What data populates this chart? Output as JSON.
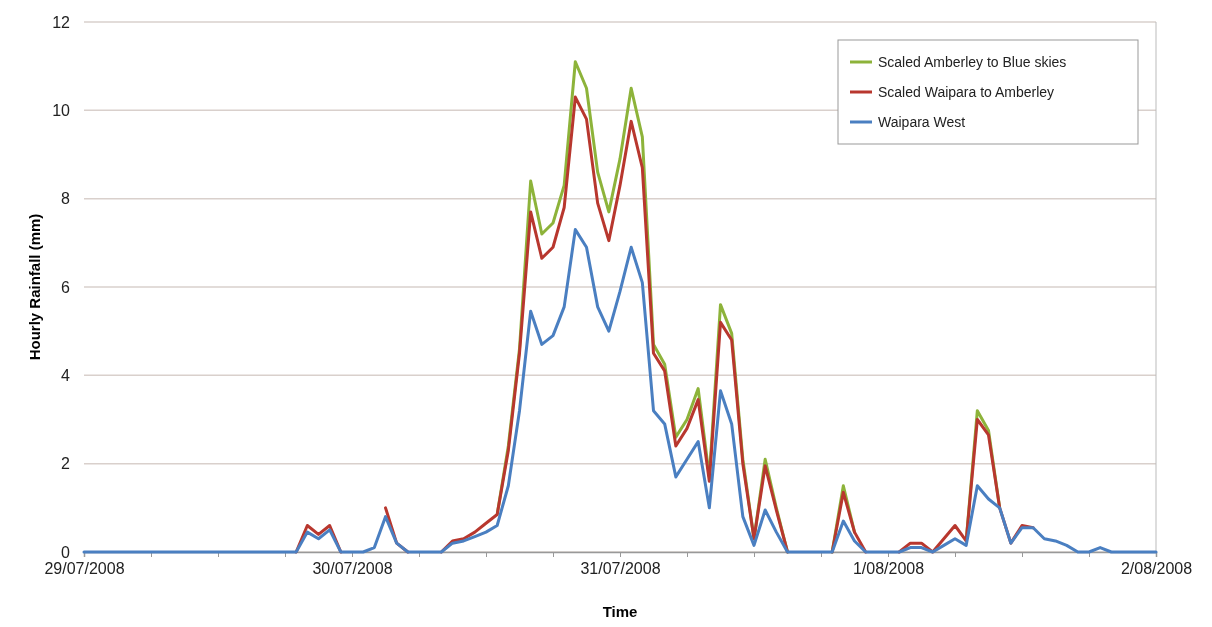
{
  "chart_data": {
    "type": "line",
    "xlabel": "Time",
    "ylabel": "Hourly Rainfall (mm)",
    "x": [
      "2008-07-29T00:00",
      "2008-07-29T01:00",
      "2008-07-29T02:00",
      "2008-07-29T03:00",
      "2008-07-29T04:00",
      "2008-07-29T05:00",
      "2008-07-29T06:00",
      "2008-07-29T07:00",
      "2008-07-29T08:00",
      "2008-07-29T09:00",
      "2008-07-29T10:00",
      "2008-07-29T11:00",
      "2008-07-29T12:00",
      "2008-07-29T13:00",
      "2008-07-29T14:00",
      "2008-07-29T15:00",
      "2008-07-29T16:00",
      "2008-07-29T17:00",
      "2008-07-29T18:00",
      "2008-07-29T19:00",
      "2008-07-29T20:00",
      "2008-07-29T21:00",
      "2008-07-29T22:00",
      "2008-07-29T23:00",
      "2008-07-30T00:00",
      "2008-07-30T01:00",
      "2008-07-30T02:00",
      "2008-07-30T03:00",
      "2008-07-30T04:00",
      "2008-07-30T05:00",
      "2008-07-30T06:00",
      "2008-07-30T07:00",
      "2008-07-30T08:00",
      "2008-07-30T09:00",
      "2008-07-30T10:00",
      "2008-07-30T11:00",
      "2008-07-30T12:00",
      "2008-07-30T13:00",
      "2008-07-30T14:00",
      "2008-07-30T15:00",
      "2008-07-30T16:00",
      "2008-07-30T17:00",
      "2008-07-30T18:00",
      "2008-07-30T19:00",
      "2008-07-30T20:00",
      "2008-07-30T21:00",
      "2008-07-30T22:00",
      "2008-07-30T23:00",
      "2008-07-31T00:00",
      "2008-07-31T01:00",
      "2008-07-31T02:00",
      "2008-07-31T03:00",
      "2008-07-31T04:00",
      "2008-07-31T05:00",
      "2008-07-31T06:00",
      "2008-07-31T07:00",
      "2008-07-31T08:00",
      "2008-07-31T09:00",
      "2008-07-31T10:00",
      "2008-07-31T11:00",
      "2008-07-31T12:00",
      "2008-07-31T13:00",
      "2008-07-31T14:00",
      "2008-07-31T15:00",
      "2008-07-31T16:00",
      "2008-07-31T17:00",
      "2008-07-31T18:00",
      "2008-07-31T19:00",
      "2008-07-31T20:00",
      "2008-07-31T21:00",
      "2008-07-31T22:00",
      "2008-07-31T23:00",
      "2008-08-01T00:00",
      "2008-08-01T01:00",
      "2008-08-01T02:00",
      "2008-08-01T03:00",
      "2008-08-01T04:00",
      "2008-08-01T05:00",
      "2008-08-01T06:00",
      "2008-08-01T07:00",
      "2008-08-01T08:00",
      "2008-08-01T09:00",
      "2008-08-01T10:00",
      "2008-08-01T11:00",
      "2008-08-01T12:00",
      "2008-08-01T13:00",
      "2008-08-01T14:00",
      "2008-08-01T15:00",
      "2008-08-01T16:00",
      "2008-08-01T17:00",
      "2008-08-01T18:00",
      "2008-08-01T19:00",
      "2008-08-01T20:00",
      "2008-08-01T21:00",
      "2008-08-01T22:00",
      "2008-08-01T23:00",
      "2008-08-02T00:00"
    ],
    "series": [
      {
        "name": "Scaled Amberley to Blue skies",
        "color": "#8db33a",
        "values": [
          null,
          null,
          null,
          null,
          null,
          null,
          null,
          null,
          null,
          null,
          null,
          null,
          null,
          null,
          null,
          null,
          null,
          null,
          null,
          null,
          null,
          null,
          null,
          null,
          null,
          null,
          null,
          null,
          null,
          null,
          null,
          null,
          null,
          null,
          null,
          null,
          null,
          0.85,
          2.4,
          4.6,
          8.4,
          7.2,
          7.45,
          8.3,
          11.1,
          10.5,
          8.6,
          7.7,
          8.9,
          10.5,
          9.4,
          4.7,
          4.25,
          2.6,
          3.0,
          3.7,
          1.7,
          5.6,
          4.95,
          2.1,
          0.3,
          2.1,
          1.0,
          0,
          null,
          null,
          null,
          0,
          1.5,
          0.45,
          null,
          null,
          null,
          null,
          null,
          null,
          null,
          null,
          null,
          0.25,
          3.2,
          2.75,
          1.0,
          null,
          null,
          null,
          null,
          null,
          null,
          null,
          null,
          null,
          null,
          null,
          null,
          null,
          null
        ]
      },
      {
        "name": "Scaled Waipara to Amberley",
        "color": "#b8372e",
        "values": [
          null,
          null,
          null,
          null,
          null,
          null,
          null,
          null,
          null,
          null,
          null,
          null,
          null,
          null,
          null,
          null,
          null,
          null,
          null,
          0,
          0.6,
          0.4,
          0.6,
          0,
          null,
          null,
          null,
          1.0,
          0.2,
          0,
          null,
          null,
          0,
          0.25,
          0.3,
          0.45,
          0.65,
          0.85,
          2.3,
          4.5,
          7.7,
          6.65,
          6.9,
          7.8,
          10.3,
          9.8,
          7.9,
          7.05,
          8.3,
          9.75,
          8.7,
          4.5,
          4.1,
          2.4,
          2.8,
          3.45,
          1.6,
          5.2,
          4.8,
          2.0,
          0.3,
          1.95,
          0.95,
          0,
          null,
          null,
          null,
          0,
          1.35,
          0.45,
          0,
          null,
          null,
          0,
          0.2,
          0.2,
          0,
          0.3,
          0.6,
          0.25,
          3.0,
          2.65,
          1.0,
          0.2,
          0.6,
          0.55,
          null,
          null,
          null,
          null,
          null,
          null,
          null,
          null,
          null,
          null,
          null
        ]
      },
      {
        "name": "Waipara West",
        "color": "#4a7fc1",
        "values": [
          0,
          0,
          0,
          0,
          0,
          0,
          0,
          0,
          0,
          0,
          0,
          0,
          0,
          0,
          0,
          0,
          0,
          0,
          0,
          0,
          0.45,
          0.3,
          0.5,
          0,
          0,
          0,
          0.1,
          0.8,
          0.2,
          0,
          0,
          0,
          0,
          0.2,
          0.25,
          0.35,
          0.45,
          0.6,
          1.5,
          3.2,
          5.45,
          4.7,
          4.9,
          5.55,
          7.3,
          6.9,
          5.55,
          5.0,
          5.9,
          6.9,
          6.1,
          3.2,
          2.9,
          1.7,
          2.1,
          2.5,
          1.0,
          3.65,
          2.9,
          0.8,
          0.15,
          0.95,
          0.45,
          0,
          0,
          0,
          0,
          0,
          0.7,
          0.25,
          0,
          0,
          0,
          0,
          0.1,
          0.1,
          0,
          0.15,
          0.3,
          0.15,
          1.5,
          1.2,
          1.0,
          0.2,
          0.55,
          0.55,
          0.3,
          0.25,
          0.15,
          0,
          0,
          0.1,
          0,
          0,
          0,
          0,
          0
        ]
      }
    ],
    "xlim": [
      "2008-07-29T00:00",
      "2008-08-02T00:00"
    ],
    "xticks": [
      {
        "value": "2008-07-29T00:00",
        "label": "29/07/2008"
      },
      {
        "value": "2008-07-29T06:00",
        "label": null
      },
      {
        "value": "2008-07-29T12:00",
        "label": null
      },
      {
        "value": "2008-07-29T18:00",
        "label": null
      },
      {
        "value": "2008-07-30T00:00",
        "label": "30/07/2008"
      },
      {
        "value": "2008-07-30T06:00",
        "label": null
      },
      {
        "value": "2008-07-30T12:00",
        "label": null
      },
      {
        "value": "2008-07-30T18:00",
        "label": null
      },
      {
        "value": "2008-07-31T00:00",
        "label": "31/07/2008"
      },
      {
        "value": "2008-07-31T06:00",
        "label": null
      },
      {
        "value": "2008-07-31T12:00",
        "label": null
      },
      {
        "value": "2008-07-31T18:00",
        "label": null
      },
      {
        "value": "2008-08-01T00:00",
        "label": "1/08/2008"
      },
      {
        "value": "2008-08-01T06:00",
        "label": null
      },
      {
        "value": "2008-08-01T12:00",
        "label": null
      },
      {
        "value": "2008-08-01T18:00",
        "label": null
      },
      {
        "value": "2008-08-02T00:00",
        "label": "2/08/2008"
      }
    ],
    "ylim": [
      0,
      12
    ],
    "yticks": [
      0,
      2,
      4,
      6,
      8,
      10,
      12
    ],
    "grid": "y",
    "legend": "top right",
    "marker": "none",
    "line_style": "solid"
  }
}
